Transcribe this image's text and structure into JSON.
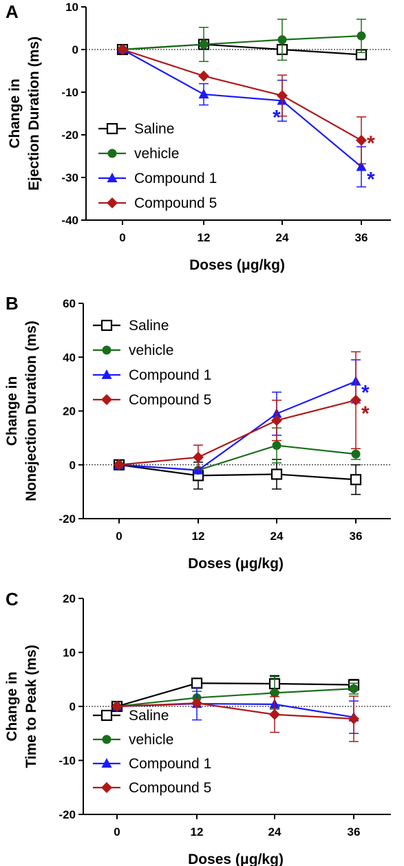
{
  "colors": {
    "saline": "#000000",
    "vehicle": "#1a6e1a",
    "compound1": "#1a1aff",
    "compound5": "#b01818"
  },
  "chart_data": [
    {
      "panel": "A",
      "type": "line",
      "xlabel": "Doses (μg/kg)",
      "ylabel": [
        "Change in",
        "Ejection Duration (ms)"
      ],
      "x": [
        0,
        12,
        24,
        36
      ],
      "xticks": [
        "0",
        "12",
        "24",
        "36"
      ],
      "ylim": [
        -40,
        10
      ],
      "yticks": [
        10,
        0,
        -10,
        -20,
        -30,
        -40
      ],
      "legend_position": "lower-left",
      "series": [
        {
          "key": "saline",
          "name": "Saline",
          "marker": "open-square",
          "values": [
            0,
            1.2,
            0,
            -1.2
          ],
          "err": [
            0,
            0,
            0,
            0
          ]
        },
        {
          "key": "vehicle",
          "name": "vehicle",
          "marker": "circle",
          "values": [
            0,
            1.2,
            2.3,
            3.2
          ],
          "err": [
            0,
            4,
            4.8,
            3.9
          ]
        },
        {
          "key": "compound1",
          "name": "Compound 1",
          "marker": "triangle",
          "values": [
            0,
            -10.5,
            -12,
            -27.5
          ],
          "err": [
            0,
            2.5,
            4.8,
            4.7
          ]
        },
        {
          "key": "compound5",
          "name": "Compound 5",
          "marker": "diamond",
          "values": [
            0,
            -6.2,
            -10.8,
            -21.3
          ],
          "err": [
            0,
            0,
            4.8,
            5.5
          ]
        }
      ],
      "significance": [
        {
          "series": "compound1",
          "x": 24,
          "label": "*"
        },
        {
          "series": "compound1",
          "x": 36,
          "label": "*"
        },
        {
          "series": "compound5",
          "x": 36,
          "label": "*"
        }
      ]
    },
    {
      "panel": "B",
      "type": "line",
      "xlabel": "Doses (μg/kg)",
      "ylabel": [
        "Change in",
        "Nonejection Duration (ms)"
      ],
      "x": [
        0,
        12,
        24,
        36
      ],
      "xticks": [
        "0",
        "12",
        "24",
        "36"
      ],
      "ylim": [
        -20,
        60
      ],
      "yticks": [
        60,
        40,
        20,
        0,
        -20
      ],
      "legend_position": "top-left",
      "series": [
        {
          "key": "saline",
          "name": "Saline",
          "marker": "open-square",
          "values": [
            0,
            -4,
            -3.5,
            -5.5
          ],
          "err": [
            0,
            5,
            5.5,
            5.5
          ]
        },
        {
          "key": "vehicle",
          "name": "vehicle",
          "marker": "circle",
          "values": [
            0,
            -2,
            7.2,
            4
          ],
          "err": [
            0,
            0,
            6.5,
            2
          ]
        },
        {
          "key": "compound1",
          "name": "Compound 1",
          "marker": "triangle",
          "values": [
            0,
            -2,
            19,
            31
          ],
          "err": [
            0,
            0,
            8,
            8
          ]
        },
        {
          "key": "compound5",
          "name": "Compound 5",
          "marker": "diamond",
          "values": [
            0,
            2.8,
            16.5,
            24
          ],
          "err": [
            0,
            4.5,
            7.5,
            18
          ]
        }
      ],
      "significance": [
        {
          "series": "compound1",
          "x": 36,
          "label": "*"
        },
        {
          "series": "compound5",
          "x": 36,
          "label": "*"
        }
      ]
    },
    {
      "panel": "C",
      "type": "line",
      "xlabel": "Doses (μg/kg)",
      "ylabel": [
        "Change in",
        "Time to Peak (ms)"
      ],
      "x": [
        0,
        12,
        24,
        36
      ],
      "xticks": [
        "0",
        "12",
        "24",
        "36"
      ],
      "ylim": [
        -20,
        20
      ],
      "yticks": [
        20,
        10,
        0,
        -10,
        -20
      ],
      "legend_position": "lower-left",
      "series": [
        {
          "key": "saline",
          "name": "Saline",
          "marker": "open-square",
          "values": [
            0,
            4.3,
            4.2,
            4
          ],
          "err": [
            0,
            0.8,
            1.5,
            1
          ]
        },
        {
          "key": "vehicle",
          "name": "vehicle",
          "marker": "circle",
          "values": [
            0,
            1.6,
            2.5,
            3.3
          ],
          "err": [
            0,
            1.2,
            3,
            1
          ]
        },
        {
          "key": "compound1",
          "name": "Compound 1",
          "marker": "triangle",
          "values": [
            0,
            0.5,
            0.4,
            -2
          ],
          "err": [
            0,
            3,
            0,
            3
          ]
        },
        {
          "key": "compound5",
          "name": "Compound 5",
          "marker": "diamond",
          "values": [
            0,
            0.6,
            -1.5,
            -2.3
          ],
          "err": [
            0,
            0,
            3.3,
            4.2
          ]
        }
      ],
      "significance": []
    }
  ]
}
